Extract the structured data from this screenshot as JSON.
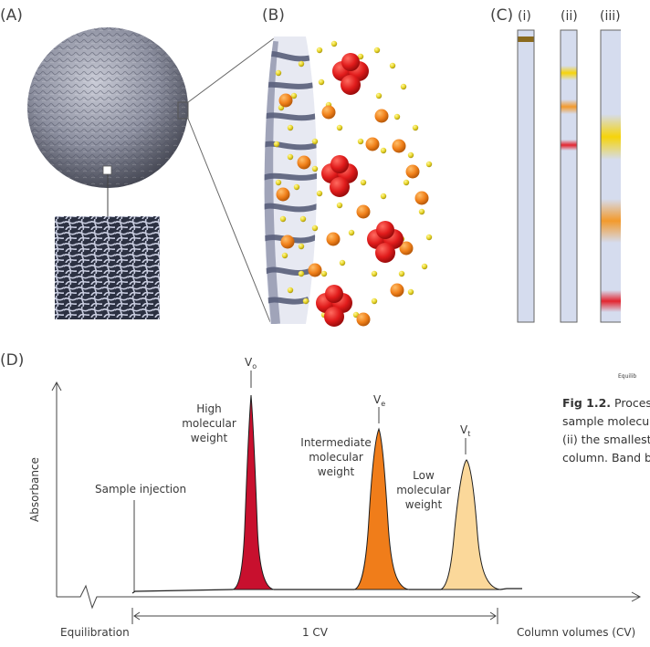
{
  "panels": {
    "a": "(A)",
    "b": "(B)",
    "c": "(C)",
    "d": "(D)"
  },
  "columns": {
    "i": "(i)",
    "ii": "(ii)",
    "iii": "(iii)"
  },
  "band_colors": {
    "brown": "#8a6a1e",
    "yellow": "#f6d40a",
    "orange": "#f39a2c",
    "red": "#e3252f",
    "column_fill": "#d5dcee"
  },
  "chromatogram": {
    "ylabel": "Absorbance",
    "sample_injection": "Sample injection",
    "equilibration": "Equilibration",
    "cv_label": "1 CV",
    "xlabel": "Column volumes (CV)",
    "peaks": [
      {
        "marker_main": "V",
        "marker_sub": "o",
        "label_lines": [
          "High",
          "molecular",
          "weight"
        ],
        "color": "#c8102e"
      },
      {
        "marker_main": "V",
        "marker_sub": "e",
        "label_lines": [
          "Intermediate",
          "molecular",
          "weight"
        ],
        "color": "#f07d1a"
      },
      {
        "marker_main": "V",
        "marker_sub": "t",
        "label_lines": [
          "Low",
          "molecular",
          "weight"
        ],
        "color": "#fbd89a"
      }
    ]
  },
  "caption": {
    "bold": "Fig 1.2.",
    "line1": "Proces",
    "line2": "sample molecu",
    "line3": "(ii) the smallest",
    "line4": "column. Band b"
  },
  "cropped_text": "Equilib"
}
